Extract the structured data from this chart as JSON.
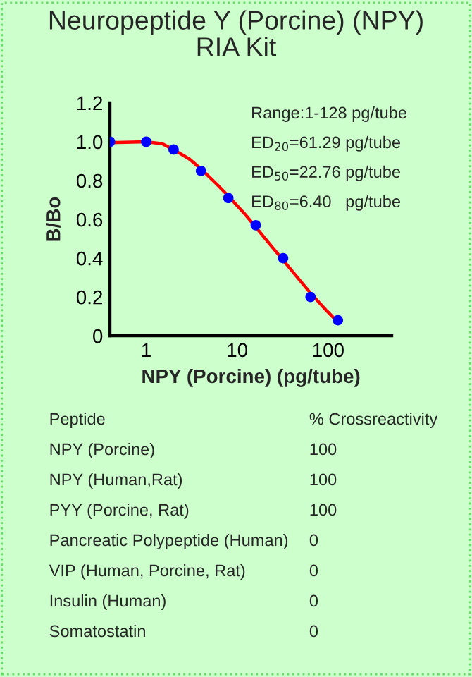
{
  "chart_data": [
    {
      "type": "scatter",
      "title": "Neuropeptide Y (Porcine) (NPY)\nRIA Kit",
      "xlabel": "NPY (Porcine) (pg/tube)",
      "ylabel": "B/Bo",
      "x": [
        0.4,
        1,
        2,
        4,
        8,
        16,
        32,
        64,
        128
      ],
      "series": [
        {
          "type": "line",
          "marker": "none",
          "color": "#ff0000",
          "x": [
            0.4,
            1,
            1.5,
            2,
            3,
            4,
            6,
            8,
            12,
            16,
            24,
            32,
            48,
            64,
            96,
            128
          ],
          "values": [
            0.995,
            1.0,
            0.99,
            0.96,
            0.91,
            0.86,
            0.78,
            0.72,
            0.63,
            0.56,
            0.46,
            0.39,
            0.29,
            0.22,
            0.13,
            0.07
          ]
        },
        {
          "type": "scatter",
          "marker": "circle",
          "color": "#0000ff",
          "values": [
            1.0,
            1.0,
            0.96,
            0.85,
            0.71,
            0.57,
            0.4,
            0.2,
            0.08
          ]
        }
      ],
      "log": "x",
      "xlim": [
        0.4,
        500
      ],
      "xticks": [
        1,
        10,
        100
      ],
      "ylim": [
        0,
        1.2
      ],
      "yticks": [
        {
          "value": 0,
          "label": "0"
        },
        {
          "value": 0.2,
          "label": "0.2"
        },
        {
          "value": 0.4,
          "label": "0.4"
        },
        {
          "value": 0.6,
          "label": "0.6"
        },
        {
          "value": 0.8,
          "label": "0.8"
        },
        {
          "value": 1.0,
          "label": "1.0"
        },
        {
          "value": 1.2,
          "label": "1.2"
        }
      ],
      "grid": false,
      "legend": false,
      "annotations": [
        "Range:1-128 pg/tube",
        "ED$_{20}$=61.29 pg/tube",
        "ED$_{50}$=22.76 pg/tube",
        "ED$_{80}$=6.40   pg/tube"
      ]
    },
    {
      "type": "other",
      "annotations": [
        "Peptide",
        "% Crossreactivity",
        "NPY (Porcine)",
        "100",
        "NPY (Human,Rat)",
        "100",
        "PYY (Porcine, Rat)",
        "100",
        "Pancreatic Polypeptide (Human)",
        "0",
        "VIP (Human, Porcine, Rat)",
        "0",
        "Insulin (Human)",
        "0",
        "Somatostatin",
        "0"
      ]
    }
  ]
}
